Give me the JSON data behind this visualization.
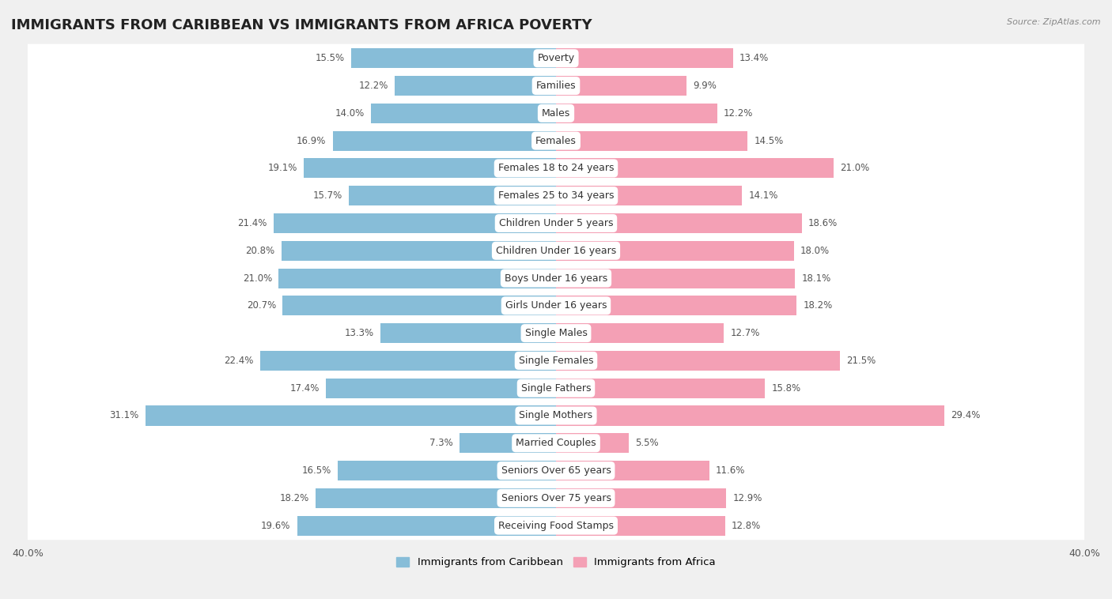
{
  "title": "IMMIGRANTS FROM CARIBBEAN VS IMMIGRANTS FROM AFRICA POVERTY",
  "source": "Source: ZipAtlas.com",
  "categories": [
    "Poverty",
    "Families",
    "Males",
    "Females",
    "Females 18 to 24 years",
    "Females 25 to 34 years",
    "Children Under 5 years",
    "Children Under 16 years",
    "Boys Under 16 years",
    "Girls Under 16 years",
    "Single Males",
    "Single Females",
    "Single Fathers",
    "Single Mothers",
    "Married Couples",
    "Seniors Over 65 years",
    "Seniors Over 75 years",
    "Receiving Food Stamps"
  ],
  "caribbean_values": [
    15.5,
    12.2,
    14.0,
    16.9,
    19.1,
    15.7,
    21.4,
    20.8,
    21.0,
    20.7,
    13.3,
    22.4,
    17.4,
    31.1,
    7.3,
    16.5,
    18.2,
    19.6
  ],
  "africa_values": [
    13.4,
    9.9,
    12.2,
    14.5,
    21.0,
    14.1,
    18.6,
    18.0,
    18.1,
    18.2,
    12.7,
    21.5,
    15.8,
    29.4,
    5.5,
    11.6,
    12.9,
    12.8
  ],
  "caribbean_color": "#87bdd8",
  "africa_color": "#f4a0b5",
  "background_color": "#f0f0f0",
  "row_color": "#ffffff",
  "xlim": 40.0,
  "bar_height": 0.72,
  "legend_labels": [
    "Immigrants from Caribbean",
    "Immigrants from Africa"
  ],
  "title_fontsize": 13,
  "label_fontsize": 9,
  "value_fontsize": 8.5
}
